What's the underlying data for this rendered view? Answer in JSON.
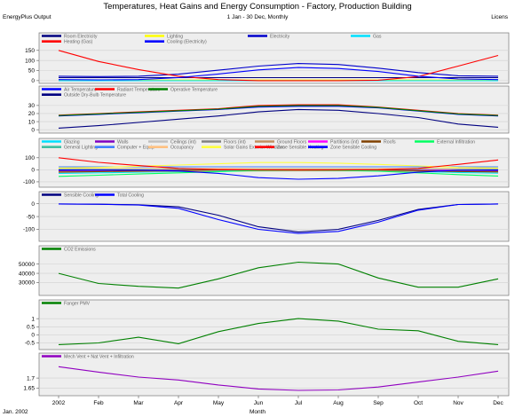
{
  "header": {
    "title": "Temperatures, Heat Gains and Energy Consumption - Factory, Production Building",
    "period": "1 Jan - 30 Dec, Monthly",
    "left_label": "EnergyPlus Output",
    "right_label": "Licens",
    "footer_left": "Jan. 2002",
    "xlabel": "Month"
  },
  "x_ticks": [
    "2002",
    "Feb",
    "Mar",
    "Apr",
    "May",
    "Jun",
    "Jul",
    "Aug",
    "Sep",
    "Oct",
    "Nov",
    "Dec"
  ],
  "chart_data": [
    {
      "type": "line",
      "ylim": [
        -5,
        165
      ],
      "yticks": [
        0,
        50,
        100,
        150
      ],
      "legend": [
        "Room Electricity",
        "Lighting",
        "Electricity",
        "Gas",
        "Heating (Gas)",
        "Cooling (Electricity)"
      ],
      "series": [
        {
          "name": "Room Electricity",
          "color": "#000080",
          "values": [
            15,
            15,
            15,
            15,
            15,
            15,
            15,
            15,
            15,
            15,
            15,
            15
          ]
        },
        {
          "name": "Lighting",
          "color": "#ffff00",
          "values": [
            3,
            3,
            3,
            3,
            3,
            3,
            3,
            3,
            3,
            3,
            3,
            3
          ]
        },
        {
          "name": "Electricity",
          "color": "#0000cc",
          "values": [
            22,
            20,
            22,
            32,
            52,
            72,
            85,
            80,
            62,
            40,
            24,
            22
          ]
        },
        {
          "name": "Gas",
          "color": "#00e0ff",
          "values": [
            0,
            0,
            0,
            0,
            0,
            0,
            0,
            0,
            0,
            0,
            0,
            0
          ]
        },
        {
          "name": "Heating (Gas)",
          "color": "#ff0000",
          "values": [
            150,
            95,
            55,
            22,
            5,
            0,
            0,
            0,
            2,
            20,
            72,
            125
          ]
        },
        {
          "name": "Cooling (Electricity)",
          "color": "#0000ff",
          "values": [
            5,
            4,
            5,
            15,
            33,
            53,
            65,
            60,
            45,
            22,
            8,
            5
          ]
        }
      ]
    },
    {
      "type": "line",
      "ylim": [
        -2,
        36
      ],
      "yticks": [
        0,
        10,
        20,
        30
      ],
      "legend": [
        "Air Temperature",
        "Radiant Temperature",
        "Operative Temperature",
        "Outside Dry-Bulb Temperature"
      ],
      "series": [
        {
          "name": "Air Temperature",
          "color": "#0000ff",
          "values": [
            17,
            19,
            21,
            23,
            25,
            28,
            29,
            29,
            27,
            23,
            19,
            17
          ]
        },
        {
          "name": "Radiant Temperature",
          "color": "#ff0000",
          "values": [
            18,
            20,
            22,
            24,
            26,
            30,
            31,
            31,
            28,
            24,
            20,
            18
          ]
        },
        {
          "name": "Operative Temperature",
          "color": "#008000",
          "values": [
            17.5,
            19.5,
            21.5,
            23.5,
            25.5,
            29,
            30,
            30,
            27.5,
            23.5,
            19.5,
            17.5
          ]
        },
        {
          "name": "Outside Dry-Bulb Temperature",
          "color": "#000080",
          "values": [
            2,
            5,
            9,
            13,
            17,
            22,
            25,
            24,
            20,
            15,
            7,
            3
          ]
        }
      ]
    },
    {
      "type": "line",
      "ylim": [
        -130,
        140
      ],
      "yticks": [
        -100,
        0,
        100
      ],
      "legend": [
        "Glazing",
        "Walls",
        "Ceilings (int)",
        "Floors (int)",
        "Ground Floors",
        "Partitions (int)",
        "Roofs",
        "External Infiltration",
        "General Lighting",
        "Computer + Equip",
        "Occupancy",
        "Solar Gains Exterior Windows",
        "Zone Sensible Heating",
        "Zone Sensible Cooling"
      ],
      "series": [
        {
          "name": "Glazing",
          "color": "#00e0ff",
          "values": [
            -30,
            -25,
            -20,
            -15,
            -10,
            -5,
            -3,
            -4,
            -8,
            -15,
            -22,
            -28
          ]
        },
        {
          "name": "Walls",
          "color": "#8000c0",
          "values": [
            -8,
            -6,
            -4,
            -2,
            0,
            1,
            2,
            2,
            0,
            -3,
            -6,
            -8
          ]
        },
        {
          "name": "Ceilings (int)",
          "color": "#c0c0c0",
          "values": [
            0,
            0,
            0,
            0,
            0,
            0,
            0,
            0,
            0,
            0,
            0,
            0
          ]
        },
        {
          "name": "Floors (int)",
          "color": "#808080",
          "values": [
            0,
            0,
            0,
            0,
            0,
            0,
            0,
            0,
            0,
            0,
            0,
            0
          ]
        },
        {
          "name": "Ground Floors",
          "color": "#c09060",
          "values": [
            -15,
            -15,
            -14,
            -13,
            -12,
            -10,
            -9,
            -9,
            -10,
            -12,
            -14,
            -15
          ]
        },
        {
          "name": "Partitions (int)",
          "color": "#ff00ff",
          "values": [
            0,
            0,
            0,
            0,
            0,
            0,
            0,
            0,
            0,
            0,
            0,
            0
          ]
        },
        {
          "name": "Roofs",
          "color": "#804000",
          "values": [
            -20,
            -15,
            -10,
            -5,
            0,
            3,
            4,
            3,
            -1,
            -7,
            -14,
            -18
          ]
        },
        {
          "name": "External Infiltration",
          "color": "#00ff60",
          "values": [
            -55,
            -45,
            -35,
            -25,
            -15,
            -5,
            -2,
            -4,
            -12,
            -25,
            -40,
            -52
          ]
        },
        {
          "name": "General Lighting",
          "color": "#40c0a0",
          "values": [
            5,
            5,
            5,
            5,
            5,
            5,
            5,
            5,
            5,
            5,
            5,
            5
          ]
        },
        {
          "name": "Computer + Equip",
          "color": "#4080ff",
          "values": [
            25,
            25,
            25,
            25,
            25,
            25,
            25,
            25,
            25,
            25,
            25,
            25
          ]
        },
        {
          "name": "Occupancy",
          "color": "#ffc080",
          "values": [
            10,
            10,
            10,
            10,
            10,
            10,
            10,
            10,
            10,
            10,
            10,
            10
          ]
        },
        {
          "name": "Solar Gains Exterior Windows",
          "color": "#ffff40",
          "values": [
            15,
            20,
            30,
            40,
            50,
            60,
            60,
            55,
            45,
            32,
            20,
            15
          ]
        },
        {
          "name": "Zone Sensible Heating",
          "color": "#ff0000",
          "values": [
            100,
            62,
            35,
            12,
            3,
            0,
            0,
            0,
            1,
            12,
            45,
            82
          ]
        },
        {
          "name": "Zone Sensible Cooling",
          "color": "#0000ff",
          "values": [
            -2,
            -2,
            -3,
            -10,
            -30,
            -65,
            -78,
            -72,
            -50,
            -20,
            -4,
            -2
          ]
        }
      ]
    },
    {
      "type": "line",
      "ylim": [
        -140,
        12
      ],
      "yticks": [
        -100,
        -50,
        0
      ],
      "legend": [
        "Sensible Cooling",
        "Total Cooling"
      ],
      "series": [
        {
          "name": "Sensible Cooling",
          "color": "#000080",
          "values": [
            -1,
            -2,
            -4,
            -12,
            -45,
            -90,
            -110,
            -100,
            -65,
            -22,
            -3,
            -1
          ]
        },
        {
          "name": "Total Cooling",
          "color": "#0000ff",
          "values": [
            -1,
            -2,
            -5,
            -18,
            -62,
            -100,
            -116,
            -108,
            -72,
            -25,
            -3,
            -1
          ]
        }
      ]
    },
    {
      "type": "line",
      "ylim": [
        18000,
        60000
      ],
      "yticks": [
        30000,
        40000,
        50000
      ],
      "legend": [
        "CO2 Emissions"
      ],
      "series": [
        {
          "name": "CO2 Emissions",
          "color": "#008000",
          "values": [
            40000,
            29000,
            26000,
            24000,
            34000,
            46000,
            52000,
            50000,
            35000,
            25000,
            25000,
            34000
          ]
        }
      ]
    },
    {
      "type": "line",
      "ylim": [
        -0.8,
        1.6
      ],
      "yticks": [
        -0.5,
        0.0,
        0.5,
        1.0
      ],
      "legend": [
        "Fanger PMV"
      ],
      "series": [
        {
          "name": "Fanger PMV",
          "color": "#008000",
          "values": [
            -0.6,
            -0.5,
            -0.15,
            -0.55,
            0.2,
            0.7,
            1.0,
            0.85,
            0.35,
            0.25,
            -0.4,
            -0.6
          ]
        }
      ]
    },
    {
      "type": "line",
      "ylim": [
        1.62,
        1.78
      ],
      "yticks": [
        1.65,
        1.7
      ],
      "legend": [
        "Mech Vent + Nat Vent + Infiltration"
      ],
      "series": [
        {
          "name": "Mech Vent + Nat Vent + Infiltration",
          "color": "#9000c0",
          "values": [
            1.757,
            1.73,
            1.705,
            1.69,
            1.665,
            1.645,
            1.638,
            1.64,
            1.655,
            1.68,
            1.705,
            1.735
          ]
        }
      ]
    }
  ]
}
